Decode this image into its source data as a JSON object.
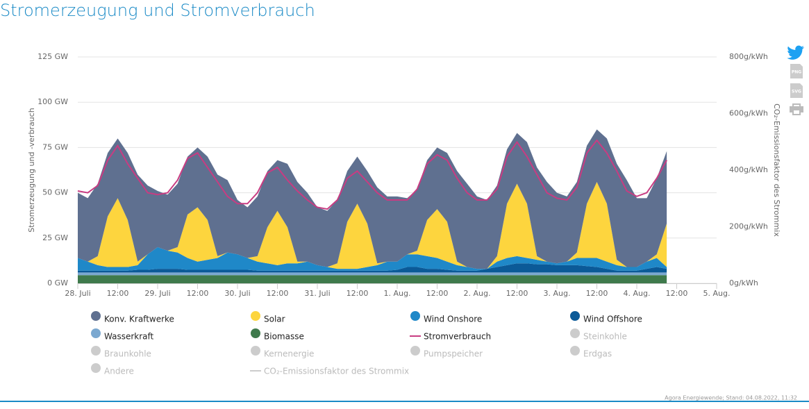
{
  "chart_data": {
    "type": "area",
    "title": "Stromerzeugung und Stromverbrauch",
    "ylabel": "Stromerzeugung und -verbrauch",
    "y2label": "CO₂-Emissionsfaktor des Strommix",
    "source": "Agora Energiewende; Stand: 04.08.2022, 11:32",
    "toolbar": [
      "PNG",
      "SVG"
    ],
    "xlim": [
      0,
      192
    ],
    "xticks": [
      {
        "value": 0,
        "label": "28. Juli"
      },
      {
        "value": 12,
        "label": "12:00"
      },
      {
        "value": 24,
        "label": "29. Juli"
      },
      {
        "value": 36,
        "label": "12:00"
      },
      {
        "value": 48,
        "label": "30. Juli"
      },
      {
        "value": 60,
        "label": "12:00"
      },
      {
        "value": 72,
        "label": "31. Juli"
      },
      {
        "value": 84,
        "label": "12:00"
      },
      {
        "value": 96,
        "label": "1. Aug."
      },
      {
        "value": 108,
        "label": "12:00"
      },
      {
        "value": 120,
        "label": "2. Aug."
      },
      {
        "value": 132,
        "label": "12:00"
      },
      {
        "value": 144,
        "label": "3. Aug."
      },
      {
        "value": 156,
        "label": "12:00"
      },
      {
        "value": 168,
        "label": "4. Aug."
      },
      {
        "value": 180,
        "label": "12:00"
      },
      {
        "value": 192,
        "label": "5. Aug."
      }
    ],
    "ylim": [
      0,
      125
    ],
    "yticks": [
      {
        "value": 0,
        "label": "0 GW"
      },
      {
        "value": 25,
        "label": "25 GW"
      },
      {
        "value": 50,
        "label": "50 GW"
      },
      {
        "value": 75,
        "label": "75 GW"
      },
      {
        "value": 100,
        "label": "100 GW"
      },
      {
        "value": 125,
        "label": "125 GW"
      }
    ],
    "y2lim": [
      0,
      800
    ],
    "y2ticks": [
      {
        "value": 0,
        "label": "0g/kWh"
      },
      {
        "value": 200,
        "label": "200g/kWh"
      },
      {
        "value": 400,
        "label": "400g/kWh"
      },
      {
        "value": 600,
        "label": "600g/kWh"
      },
      {
        "value": 800,
        "label": "800g/kWh"
      }
    ],
    "grid": true,
    "x": [
      0,
      3,
      6,
      9,
      12,
      15,
      18,
      21,
      24,
      27,
      30,
      33,
      36,
      39,
      42,
      45,
      48,
      51,
      54,
      57,
      60,
      63,
      66,
      69,
      72,
      75,
      78,
      81,
      84,
      87,
      90,
      93,
      96,
      99,
      102,
      105,
      108,
      111,
      114,
      117,
      120,
      123,
      126,
      129,
      132,
      135,
      138,
      141,
      144,
      147,
      150,
      153,
      156,
      159,
      162,
      165,
      168,
      171,
      174,
      177
    ],
    "series": [
      {
        "name": "Konv. Kraftwerke",
        "type": "area",
        "color": "#5f7090",
        "values": [
          36,
          35,
          40,
          35,
          33,
          37,
          48,
          38,
          31,
          31,
          35,
          32,
          33,
          35,
          45,
          40,
          30,
          28,
          33,
          31,
          28,
          35,
          44,
          38,
          32,
          31,
          35,
          28,
          26,
          29,
          42,
          36,
          36,
          31,
          34,
          33,
          34,
          38,
          50,
          46,
          40,
          38,
          39,
          30,
          28,
          34,
          49,
          44,
          39,
          36,
          39,
          32,
          29,
          36,
          53,
          48,
          38,
          35,
          42,
          40
        ]
      },
      {
        "name": "Solar",
        "type": "area",
        "color": "#fdd53e",
        "values": [
          0,
          0,
          5,
          28,
          38,
          26,
          2,
          0,
          0,
          0,
          3,
          24,
          30,
          22,
          1,
          0,
          0,
          0,
          3,
          20,
          30,
          20,
          1,
          0,
          0,
          0,
          3,
          26,
          36,
          24,
          1,
          0,
          0,
          0,
          2,
          20,
          27,
          22,
          2,
          0,
          0,
          0,
          3,
          30,
          40,
          30,
          2,
          0,
          0,
          0,
          3,
          30,
          42,
          32,
          3,
          0,
          0,
          0,
          2,
          24
        ]
      },
      {
        "name": "Wind Onshore",
        "type": "area",
        "color": "#1f88c8",
        "values": [
          7,
          5,
          3,
          2,
          2,
          2,
          2.5,
          8.5,
          12,
          10,
          9,
          6.5,
          4.5,
          5.5,
          6.5,
          9.5,
          8.5,
          6.5,
          5,
          4,
          3,
          4,
          4,
          5,
          3,
          2,
          1,
          1,
          1,
          2,
          3,
          5,
          4.5,
          7,
          7,
          7,
          6,
          4.5,
          3,
          2,
          1,
          0,
          3,
          4,
          4,
          3,
          2.5,
          1.5,
          1,
          2,
          4,
          4.5,
          5,
          4,
          3,
          2,
          2,
          4,
          5,
          1
        ]
      },
      {
        "name": "Wind Offshore",
        "type": "area",
        "color": "#0b5a98",
        "values": [
          1,
          1,
          1,
          1,
          1,
          1,
          1.5,
          1.5,
          2,
          2,
          2,
          1.5,
          1.5,
          1.5,
          1.5,
          1.5,
          1.5,
          1.5,
          1,
          1,
          1,
          1,
          1,
          1,
          1,
          1,
          1,
          1,
          1,
          1,
          1,
          1,
          1.5,
          3,
          3,
          2,
          2,
          1.5,
          1,
          1,
          1,
          2,
          3,
          4,
          5,
          5,
          4.5,
          4.5,
          4,
          4,
          4,
          3.5,
          3,
          2,
          1,
          1,
          1,
          2,
          3,
          2
        ]
      },
      {
        "name": "Wasserkraft",
        "type": "area",
        "color": "#7ba8d0",
        "values": [
          1.5,
          1.5,
          1.5,
          1.5,
          1.5,
          1.5,
          1.5,
          1.5,
          1.5,
          1.5,
          1.5,
          1.5,
          1.5,
          1.5,
          1.5,
          1.5,
          1.5,
          1.5,
          1.5,
          1.5,
          1.5,
          1.5,
          1.5,
          1.5,
          1.5,
          1.5,
          1.5,
          1.5,
          1.5,
          1.5,
          1.5,
          1.5,
          1.5,
          1.5,
          1.5,
          1.5,
          1.5,
          1.5,
          1.5,
          1.5,
          1.5,
          1.5,
          1.5,
          1.5,
          1.5,
          1.5,
          1.5,
          1.5,
          1.5,
          1.5,
          1.5,
          1.5,
          1.5,
          1.5,
          1.5,
          1.5,
          1.5,
          1.5,
          1.5,
          1.5
        ]
      },
      {
        "name": "Biomasse",
        "type": "area",
        "color": "#3f7a4c",
        "values": [
          4.5,
          4.5,
          4.5,
          4.5,
          4.5,
          4.5,
          4.5,
          4.5,
          4.5,
          4.5,
          4.5,
          4.5,
          4.5,
          4.5,
          4.5,
          4.5,
          4.5,
          4.5,
          4.5,
          4.5,
          4.5,
          4.5,
          4.5,
          4.5,
          4.5,
          4.5,
          4.5,
          4.5,
          4.5,
          4.5,
          4.5,
          4.5,
          4.5,
          4.5,
          4.5,
          4.5,
          4.5,
          4.5,
          4.5,
          4.5,
          4.5,
          4.5,
          4.5,
          4.5,
          4.5,
          4.5,
          4.5,
          4.5,
          4.5,
          4.5,
          4.5,
          4.5,
          4.5,
          4.5,
          4.5,
          4.5,
          4.5,
          4.5,
          4.5,
          4.5
        ]
      },
      {
        "name": "Stromverbrauch",
        "type": "line",
        "color": "#c83c82",
        "values": [
          51,
          50,
          54,
          68,
          76,
          66,
          58,
          50,
          49,
          50,
          57,
          69,
          72,
          64,
          56,
          48,
          44,
          44,
          50,
          61,
          64,
          57,
          51,
          46,
          42,
          41,
          46,
          58,
          62,
          56,
          50,
          46,
          46,
          46,
          52,
          66,
          71,
          68,
          58,
          50,
          46,
          46,
          52,
          70,
          78,
          70,
          60,
          50,
          47,
          46,
          53,
          72,
          79,
          72,
          62,
          51,
          48,
          50,
          58,
          68
        ]
      }
    ],
    "hidden_series": [
      {
        "name": "Steinkohle",
        "type": "area",
        "color": "#cccccc"
      },
      {
        "name": "Braunkohle",
        "type": "area",
        "color": "#cccccc"
      },
      {
        "name": "Kernenergie",
        "type": "area",
        "color": "#cccccc"
      },
      {
        "name": "Pumpspeicher",
        "type": "area",
        "color": "#cccccc"
      },
      {
        "name": "Erdgas",
        "type": "area",
        "color": "#cccccc"
      },
      {
        "name": "Andere",
        "type": "area",
        "color": "#cccccc"
      },
      {
        "name": "CO₂-Emissionsfaktor des Strommix",
        "type": "line",
        "color": "#cccccc"
      }
    ]
  }
}
